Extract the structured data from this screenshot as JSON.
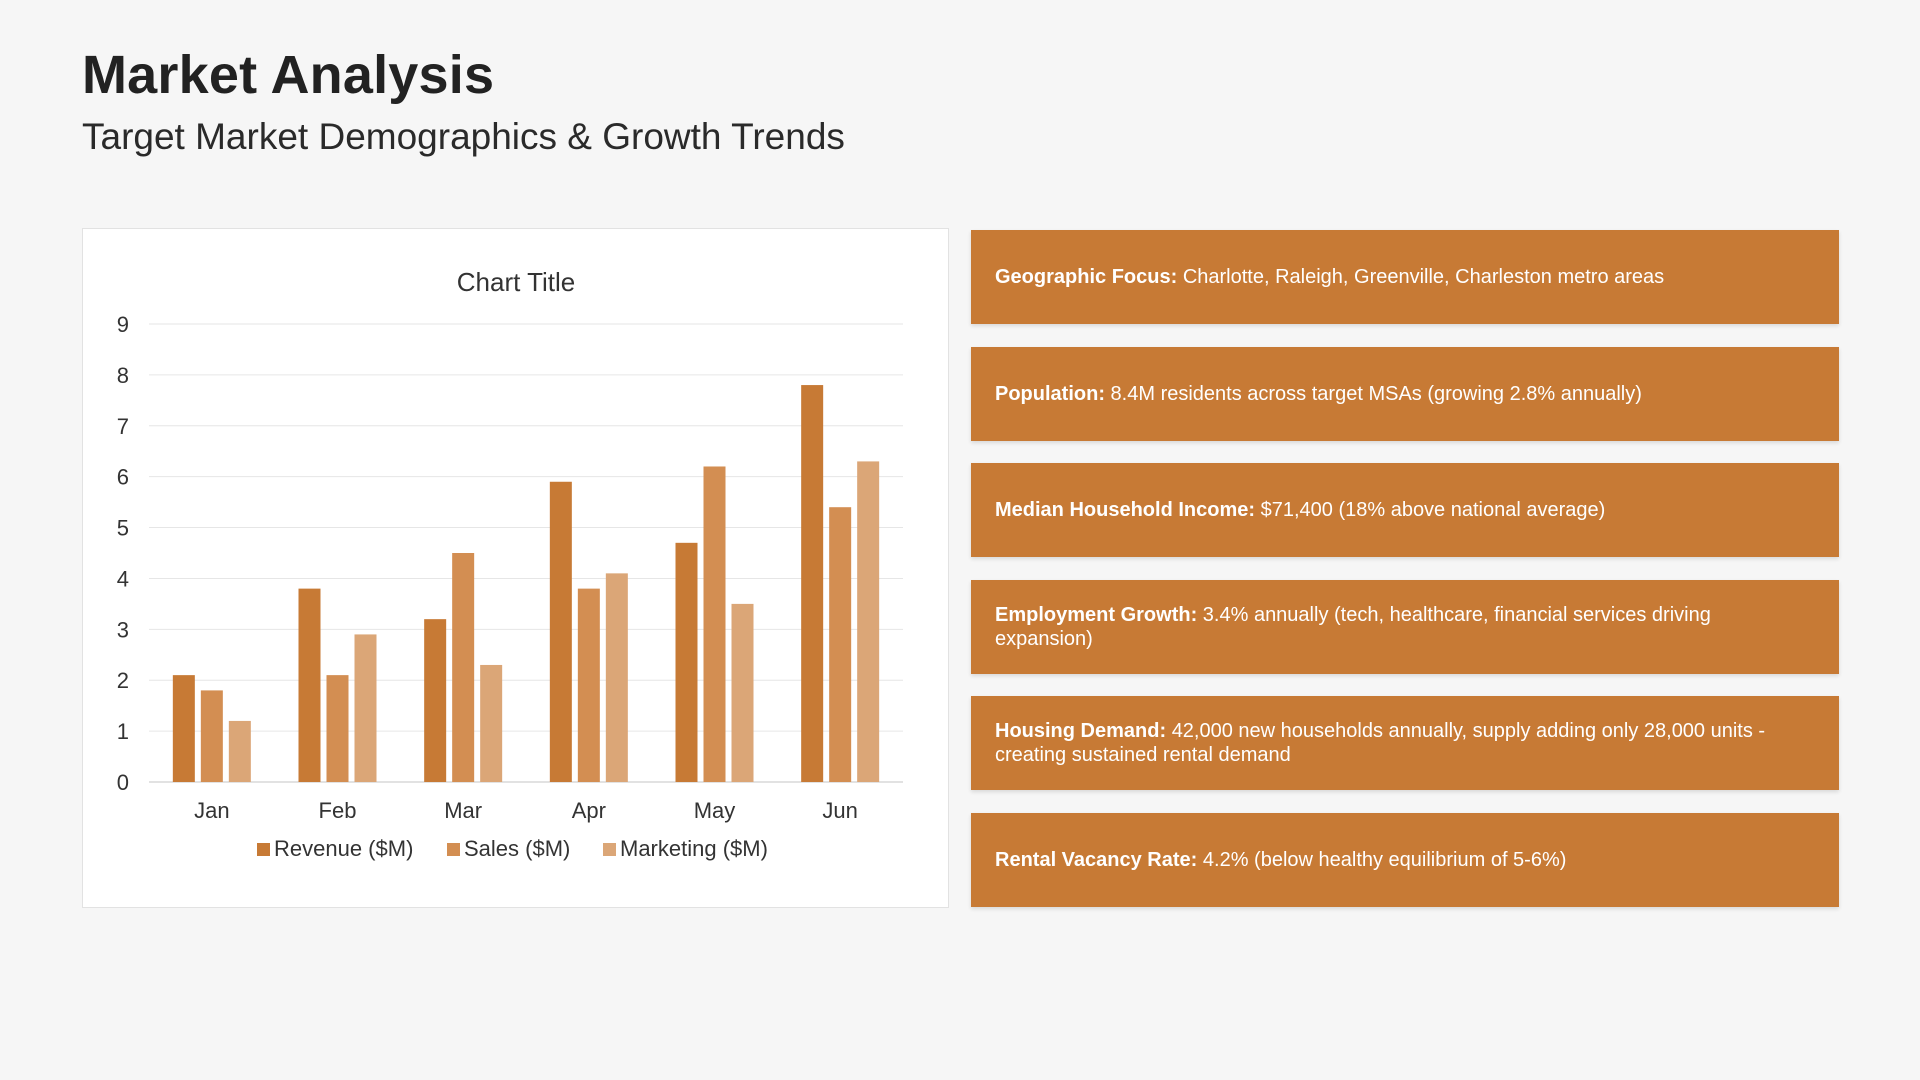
{
  "header": {
    "title": "Market Analysis",
    "subtitle": "Target Market Demographics & Growth Trends"
  },
  "colors": {
    "revenue": "#c77a35",
    "sales": "#d38e52",
    "marketing": "#dba677",
    "card": "#c77a35"
  },
  "chart_data": {
    "type": "bar",
    "title": "Chart Title",
    "xlabel": "",
    "ylabel": "",
    "categories": [
      "Jan",
      "Feb",
      "Mar",
      "Apr",
      "May",
      "Jun"
    ],
    "series": [
      {
        "name": "Revenue ($M)",
        "values": [
          2.1,
          3.8,
          3.2,
          5.9,
          4.7,
          7.8
        ]
      },
      {
        "name": "Sales ($M)",
        "values": [
          1.8,
          2.1,
          4.5,
          3.8,
          6.2,
          5.4
        ]
      },
      {
        "name": "Marketing ($M)",
        "values": [
          1.2,
          2.9,
          2.3,
          4.1,
          3.5,
          6.3
        ]
      }
    ],
    "ylim": [
      0,
      9
    ],
    "yticks": [
      "0",
      "1",
      "2",
      "3",
      "4",
      "5",
      "6",
      "7",
      "8",
      "9"
    ],
    "grid": true,
    "legend": "bottom"
  },
  "facts": [
    {
      "label": "Geographic Focus:",
      "text": "Charlotte, Raleigh, Greenville, Charleston metro areas"
    },
    {
      "label": "Population:",
      "text": "8.4M residents across target MSAs (growing 2.8% annually)"
    },
    {
      "label": "Median Household Income:",
      "text": "$71,400 (18% above national average)"
    },
    {
      "label": "Employment Growth:",
      "text": "3.4% annually (tech, healthcare, financial services driving expansion)"
    },
    {
      "label": "Housing Demand:",
      "text": "42,000 new households annually, supply adding only 28,000 units - creating sustained rental demand"
    },
    {
      "label": "Rental Vacancy Rate:",
      "text": "4.2% (below healthy equilibrium of 5-6%)"
    }
  ]
}
